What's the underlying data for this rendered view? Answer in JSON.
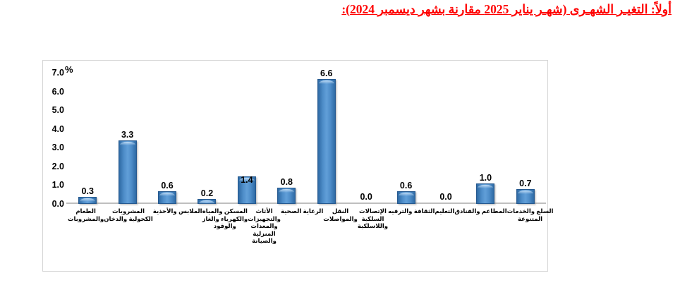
{
  "title": {
    "text": "أولاً: التغيـر الشهـرى (شهـر يناير 2025 مقارنة بشهر ديسمبر 2024):",
    "color": "#ff0000"
  },
  "chart_data": {
    "type": "bar",
    "title": "أولاً: التغير الشهرى (شهر يناير 2025 مقارنة بشهر ديسمبر 2024)",
    "unit_label": "%",
    "xlabel": "",
    "ylabel": "%",
    "ylim": [
      0,
      7
    ],
    "ytick_labels": [
      "0.0",
      "1.0",
      "2.0",
      "3.0",
      "4.0",
      "5.0",
      "6.0",
      "7.0"
    ],
    "grid": false,
    "legend": false,
    "bar_color": "#4e8dc9",
    "bar_edge_color": "#26598f",
    "categories": [
      "الطعام والمشروبات",
      "المشروبات الكحولية والدخان",
      "الملابس والأحذية",
      "المسكن والمياه والكهرباء والغاز والوقود",
      "الأثاث والتجهيزات والمعدات المنزلية والصيانة",
      "الرعاية الصحية",
      "النقل والمواصلات",
      "الإتصالات السلكية واللاسلكية",
      "الثقافة والترفيه",
      "التعليم",
      "المطاعم والفنادق",
      "السلع والخدمات المتنوعة"
    ],
    "category_lines": [
      [
        "الطعام",
        "والمشروبات"
      ],
      [
        "المشروبات",
        "الكحولية والدخان"
      ],
      [
        "الملابس والأحذية"
      ],
      [
        "المسكن والمياه",
        "والكهرباء والغاز",
        "والوقود"
      ],
      [
        "الأثاث",
        "والتجهيزات",
        "والمعدات",
        "المنزلية",
        "والصيانة"
      ],
      [
        "الرعاية الصحية"
      ],
      [
        "النقل",
        "والمواصلات"
      ],
      [
        "الإتصالات",
        "السلكية",
        "واللاسلكية"
      ],
      [
        "الثقافة والترفيه"
      ],
      [
        "التعليم"
      ],
      [
        "المطاعم والفنادق"
      ],
      [
        "السلع والخدمات",
        "المتنوعة"
      ]
    ],
    "values": [
      0.3,
      3.3,
      0.6,
      0.2,
      1.4,
      0.8,
      6.6,
      0.0,
      0.6,
      0.0,
      1.0,
      0.7
    ],
    "value_labels": [
      "0.3",
      "3.3",
      "0.6",
      "0.2",
      "1.4",
      "0.8",
      "6.6",
      "0.0",
      "0.6",
      "0.0",
      "1.0",
      "0.7"
    ]
  }
}
